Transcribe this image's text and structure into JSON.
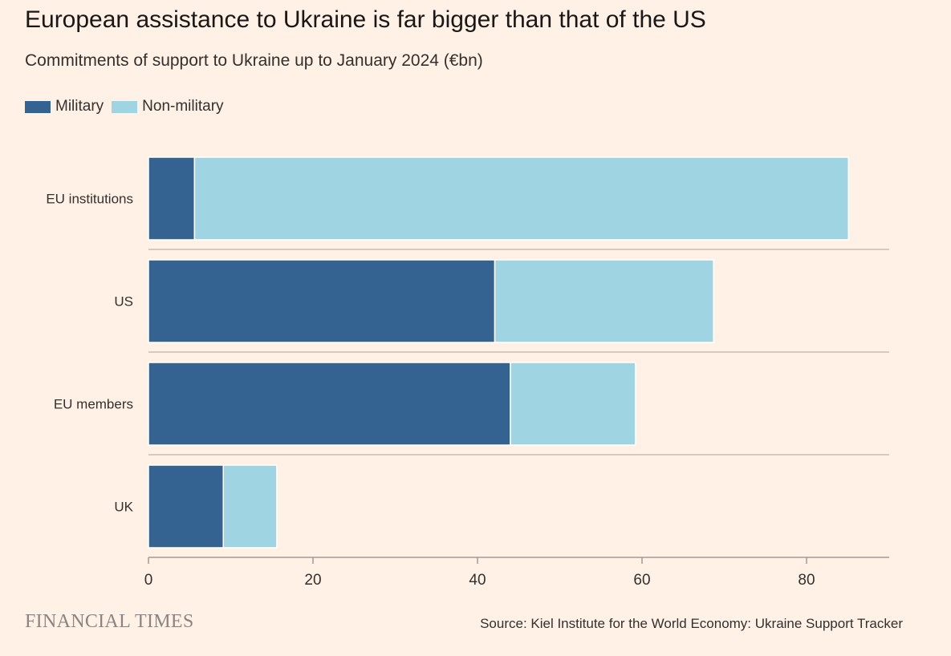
{
  "colors": {
    "background": "#fff1e5",
    "military": "#346391",
    "non_military": "#9fd4e3",
    "axis": "#a39b93",
    "text": "#33302e"
  },
  "chart_data": {
    "type": "bar",
    "orientation": "horizontal",
    "stacked": true,
    "title": "European assistance to Ukraine is far bigger than that of the US",
    "subtitle": "Commitments of support to Ukraine up to January 2024 (€bn)",
    "categories": [
      "EU institutions",
      "US",
      "EU members",
      "UK"
    ],
    "series": [
      {
        "name": "Military",
        "values": [
          5.6,
          42.1,
          44.0,
          9.1
        ]
      },
      {
        "name": "Non-military",
        "values": [
          79.5,
          26.6,
          15.2,
          6.5
        ]
      }
    ],
    "xlim": [
      0,
      90
    ],
    "xticks": [
      0,
      20,
      40,
      60,
      80
    ],
    "xtick_labels": [
      "0",
      "20",
      "40",
      "60",
      "80"
    ],
    "legend": "top-left",
    "grid": false
  },
  "footer": {
    "logo": "FINANCIAL TIMES",
    "source": "Source: Kiel Institute for the World Economy: Ukraine Support Tracker"
  }
}
